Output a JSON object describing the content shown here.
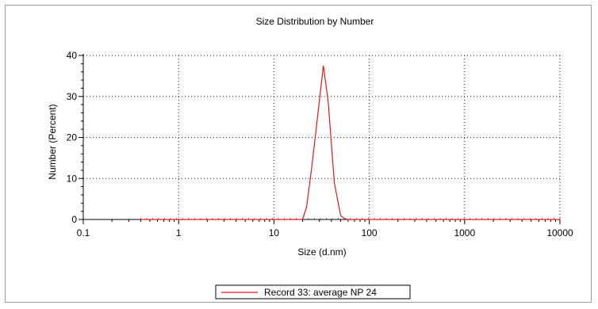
{
  "chart_data": {
    "type": "line",
    "title": "Size Distribution by Number",
    "xlabel": "Size (d.nm)",
    "ylabel": "Number (Percent)",
    "x_scale": "log",
    "xlim": [
      0.1,
      10000
    ],
    "ylim": [
      0,
      40
    ],
    "x_ticks": [
      0.1,
      1,
      10,
      100,
      1000,
      10000
    ],
    "x_tick_labels": [
      "0.1",
      "1",
      "10",
      "100",
      "1000",
      "10000"
    ],
    "y_ticks": [
      0,
      10,
      20,
      30,
      40
    ],
    "y_tick_labels": [
      "0",
      "10",
      "20",
      "30",
      "40"
    ],
    "grid": true,
    "legend_position": "bottom-center",
    "series": [
      {
        "name": "Record 33: average NP 24",
        "color": "#e8141c",
        "x": [
          0.4,
          1,
          5,
          10,
          15,
          20,
          22,
          25,
          29,
          33,
          37,
          43,
          50,
          55,
          60,
          80,
          100,
          1000,
          10000
        ],
        "y": [
          0,
          0,
          0,
          0,
          0,
          0,
          3,
          13,
          26,
          37.5,
          29,
          9,
          1,
          0.2,
          0,
          0,
          0,
          0,
          0
        ]
      }
    ]
  }
}
